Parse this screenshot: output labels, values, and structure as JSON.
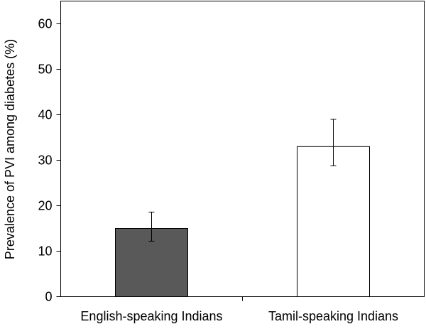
{
  "chart_data": {
    "type": "bar",
    "title": "",
    "xlabel": "",
    "ylabel": "Prevalence  of PVI among diabetes (%)",
    "categories": [
      "English-speaking Indians",
      "Tamil-speaking Indians"
    ],
    "values": [
      15,
      33
    ],
    "error_low": [
      12.2,
      28.8
    ],
    "error_high": [
      18.6,
      39
    ],
    "ylim": [
      0,
      65
    ],
    "yticks": [
      0,
      10,
      20,
      30,
      40,
      50,
      60
    ],
    "ytick_labels": [
      "0",
      "10",
      "20",
      "30",
      "40",
      "50",
      "60"
    ],
    "bar_fill_colors": [
      "#595959",
      "#ffffff"
    ],
    "bar_stroke_color": "#000000",
    "grid": false,
    "legend": "none"
  }
}
